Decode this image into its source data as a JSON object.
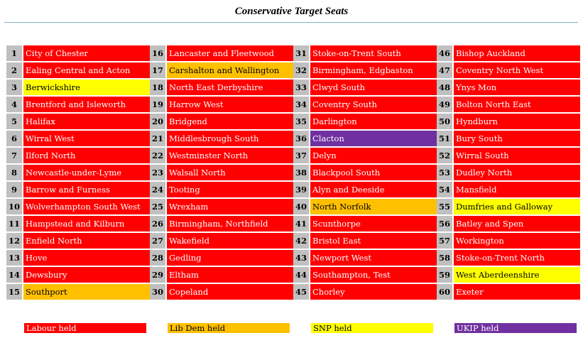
{
  "title": "Conservative Target Seats",
  "colors": {
    "labour": "#ff0000",
    "libdem": "#ffc000",
    "snp": "#ffff00",
    "ukip": "#7030a0",
    "number_bg": "#c0c0c0"
  },
  "columns": [
    [
      {
        "n": "1",
        "name": "City of Chester",
        "party": "lab"
      },
      {
        "n": "2",
        "name": "Ealing Central and Acton",
        "party": "lab"
      },
      {
        "n": "3",
        "name": "Berwickshire",
        "party": "snp"
      },
      {
        "n": "4",
        "name": "Brentford and Isleworth",
        "party": "lab"
      },
      {
        "n": "5",
        "name": "Halifax",
        "party": "lab"
      },
      {
        "n": "6",
        "name": "Wirral West",
        "party": "lab"
      },
      {
        "n": "7",
        "name": "Ilford North",
        "party": "lab"
      },
      {
        "n": "8",
        "name": "Newcastle-under-Lyme",
        "party": "lab"
      },
      {
        "n": "9",
        "name": "Barrow and Furness",
        "party": "lab"
      },
      {
        "n": "10",
        "name": "Wolverhampton South West",
        "party": "lab"
      },
      {
        "n": "11",
        "name": "Hampstead and Kilburn",
        "party": "lab"
      },
      {
        "n": "12",
        "name": "Enfield North",
        "party": "lab"
      },
      {
        "n": "13",
        "name": "Hove",
        "party": "lab"
      },
      {
        "n": "14",
        "name": "Dewsbury",
        "party": "lab"
      },
      {
        "n": "15",
        "name": "Southport",
        "party": "ld"
      }
    ],
    [
      {
        "n": "16",
        "name": "Lancaster and Fleetwood",
        "party": "lab"
      },
      {
        "n": "17",
        "name": "Carshalton and Wallington",
        "party": "ld"
      },
      {
        "n": "18",
        "name": "North East Derbyshire",
        "party": "lab"
      },
      {
        "n": "19",
        "name": "Harrow West",
        "party": "lab"
      },
      {
        "n": "20",
        "name": "Bridgend",
        "party": "lab"
      },
      {
        "n": "21",
        "name": "Middlesbrough South",
        "party": "lab"
      },
      {
        "n": "22",
        "name": "Westminster North",
        "party": "lab"
      },
      {
        "n": "23",
        "name": "Walsall North",
        "party": "lab"
      },
      {
        "n": "24",
        "name": "Tooting",
        "party": "lab"
      },
      {
        "n": "25",
        "name": "Wrexham",
        "party": "lab"
      },
      {
        "n": "26",
        "name": "Birmingham, Northfield",
        "party": "lab"
      },
      {
        "n": "27",
        "name": "Wakefield",
        "party": "lab"
      },
      {
        "n": "28",
        "name": "Gedling",
        "party": "lab"
      },
      {
        "n": "29",
        "name": "Eltham",
        "party": "lab"
      },
      {
        "n": "30",
        "name": "Copeland",
        "party": "lab"
      }
    ],
    [
      {
        "n": "31",
        "name": "Stoke-on-Trent South",
        "party": "lab"
      },
      {
        "n": "32",
        "name": "Birmingham, Edgbaston",
        "party": "lab"
      },
      {
        "n": "33",
        "name": "Clwyd South",
        "party": "lab"
      },
      {
        "n": "34",
        "name": "Coventry South",
        "party": "lab"
      },
      {
        "n": "35",
        "name": "Darlington",
        "party": "lab"
      },
      {
        "n": "36",
        "name": "Clacton",
        "party": "ukip"
      },
      {
        "n": "37",
        "name": "Delyn",
        "party": "lab"
      },
      {
        "n": "38",
        "name": "Blackpool South",
        "party": "lab"
      },
      {
        "n": "39",
        "name": "Alyn and Deeside",
        "party": "lab"
      },
      {
        "n": "40",
        "name": "North Norfolk",
        "party": "ld"
      },
      {
        "n": "41",
        "name": "Scunthorpe",
        "party": "lab"
      },
      {
        "n": "42",
        "name": "Bristol East",
        "party": "lab"
      },
      {
        "n": "43",
        "name": "Newport West",
        "party": "lab"
      },
      {
        "n": "44",
        "name": "Southampton, Test",
        "party": "lab"
      },
      {
        "n": "45",
        "name": "Chorley",
        "party": "lab"
      }
    ],
    [
      {
        "n": "46",
        "name": "Bishop Auckland",
        "party": "lab"
      },
      {
        "n": "47",
        "name": "Coventry North West",
        "party": "lab"
      },
      {
        "n": "48",
        "name": "Ynys Mon",
        "party": "lab"
      },
      {
        "n": "49",
        "name": "Bolton North East",
        "party": "lab"
      },
      {
        "n": "50",
        "name": "Hyndburn",
        "party": "lab"
      },
      {
        "n": "51",
        "name": "Bury South",
        "party": "lab"
      },
      {
        "n": "52",
        "name": "Wirral South",
        "party": "lab"
      },
      {
        "n": "53",
        "name": "Dudley North",
        "party": "lab"
      },
      {
        "n": "54",
        "name": "Mansfield",
        "party": "lab"
      },
      {
        "n": "55",
        "name": "Dumfries and Galloway",
        "party": "snp"
      },
      {
        "n": "56",
        "name": "Batley and Spen",
        "party": "lab"
      },
      {
        "n": "57",
        "name": "Workington",
        "party": "lab"
      },
      {
        "n": "58",
        "name": "Stoke-on-Trent North",
        "party": "lab"
      },
      {
        "n": "59",
        "name": "West Aberdeenshire",
        "party": "snp"
      },
      {
        "n": "60",
        "name": "Exeter",
        "party": "lab"
      }
    ]
  ],
  "legend": {
    "labour": "Labour held",
    "libdem": "Lib Dem held",
    "snp": "SNP held",
    "ukip": "UKIP held"
  }
}
